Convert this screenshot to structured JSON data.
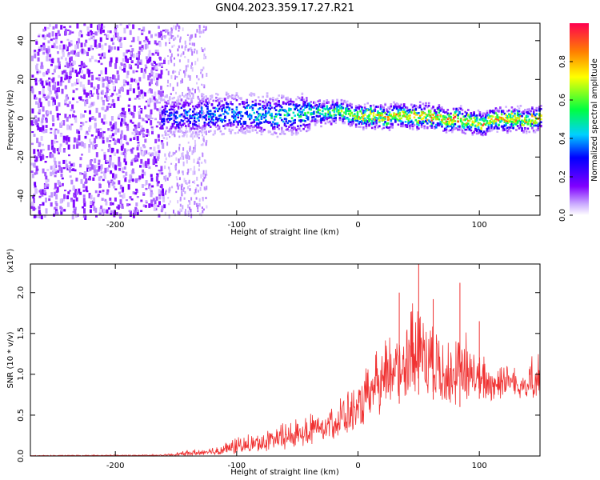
{
  "title": "GN04.2023.359.17.27.R21",
  "chart_data": [
    {
      "type": "heatmap",
      "xlabel": "Height of straight line (km)",
      "ylabel": "Frequency (Hz)",
      "xlim": [
        -270,
        150
      ],
      "ylim": [
        -50,
        49
      ],
      "xticks": [
        -200,
        -100,
        0,
        100
      ],
      "yticks": [
        -40,
        -20,
        0,
        20,
        40
      ],
      "colorbar": {
        "label": "Normalized spectral amplitude",
        "range": [
          0.0,
          1.0
        ],
        "ticks": [
          0.0,
          0.2,
          0.4,
          0.6,
          0.8
        ],
        "tick_labels": [
          "0.0",
          "0.2",
          "0.4",
          "0.6",
          "0.8"
        ]
      },
      "ridge": {
        "x": [
          -160,
          -130,
          -100,
          -70,
          -40,
          -20,
          0,
          20,
          40,
          60,
          80,
          100,
          120,
          150
        ],
        "frequency": [
          1,
          2,
          3,
          2,
          3,
          4,
          2,
          1,
          2,
          1,
          0,
          -2,
          0,
          0
        ],
        "amplitude": [
          0.35,
          0.4,
          0.45,
          0.5,
          0.55,
          0.65,
          0.8,
          0.85,
          0.85,
          0.9,
          0.9,
          0.85,
          0.85,
          0.8
        ]
      }
    },
    {
      "type": "line",
      "xlabel": "Height of straight line (km)",
      "ylabel": "SNR (10 * v/v)",
      "y_multiplier": "(x10⁴)",
      "xlim": [
        -270,
        150
      ],
      "ylim": [
        0,
        2.35
      ],
      "xticks": [
        -200,
        -100,
        0,
        100
      ],
      "yticks": [
        0.0,
        0.5,
        1.0,
        1.5,
        2.0
      ],
      "ytick_labels": [
        "0.0",
        "0.5",
        "1.0",
        "1.5",
        "2.0"
      ],
      "color": "#f03232",
      "envelope": {
        "x": [
          -270,
          -160,
          -150,
          -140,
          -120,
          -100,
          -80,
          -60,
          -40,
          -20,
          0,
          10,
          20,
          30,
          40,
          50,
          60,
          70,
          80,
          90,
          100,
          110,
          120,
          130,
          140,
          150
        ],
        "low": [
          0.0,
          0.0,
          0.0,
          0.0,
          0.01,
          0.02,
          0.05,
          0.08,
          0.12,
          0.2,
          0.3,
          0.4,
          0.5,
          0.6,
          0.7,
          0.75,
          0.7,
          0.65,
          0.6,
          0.6,
          0.7,
          0.65,
          0.7,
          0.7,
          0.65,
          0.6
        ],
        "high": [
          0.01,
          0.02,
          0.05,
          0.08,
          0.12,
          0.25,
          0.32,
          0.45,
          0.6,
          0.75,
          0.95,
          1.2,
          1.5,
          1.8,
          2.0,
          2.1,
          1.85,
          1.6,
          1.5,
          1.65,
          1.3,
          1.25,
          1.3,
          1.2,
          1.25,
          1.4
        ],
        "peaks": [
          {
            "x": 50,
            "y": 2.35
          },
          {
            "x": 34,
            "y": 2.0
          },
          {
            "x": 84,
            "y": 2.12
          },
          {
            "x": 62,
            "y": 1.92
          },
          {
            "x": 100,
            "y": 1.65
          }
        ]
      }
    }
  ]
}
